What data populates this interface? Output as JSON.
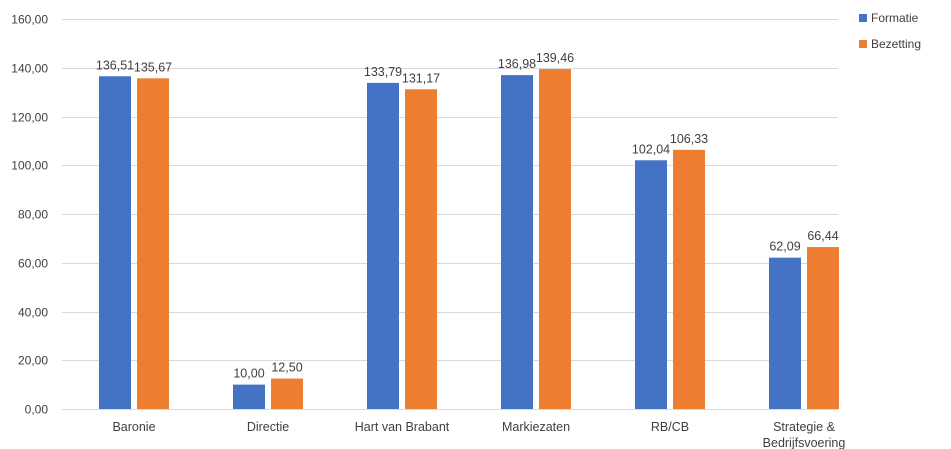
{
  "chart_data": {
    "type": "bar",
    "categories": [
      [
        "Baronie"
      ],
      [
        "Directie"
      ],
      [
        "Hart van Brabant"
      ],
      [
        "Markiezaten"
      ],
      [
        "RB/CB"
      ],
      [
        "Strategie &",
        "Bedrijfsvoering"
      ]
    ],
    "series": [
      {
        "name": "Formatie",
        "color": "#4472c4",
        "values": [
          136.51,
          10.0,
          133.79,
          136.98,
          102.04,
          62.09
        ],
        "labels": [
          "136,51",
          "10,00",
          "133,79",
          "136,98",
          "102,04",
          "62,09"
        ]
      },
      {
        "name": "Bezetting",
        "color": "#ed7d31",
        "values": [
          135.67,
          12.5,
          131.17,
          139.46,
          106.33,
          66.44
        ],
        "labels": [
          "135,67",
          "12,50",
          "131,17",
          "139,46",
          "106,33",
          "66,44"
        ]
      }
    ],
    "yticks": [
      {
        "value": 0,
        "label": "0,00"
      },
      {
        "value": 20,
        "label": "20,00"
      },
      {
        "value": 40,
        "label": "40,00"
      },
      {
        "value": 60,
        "label": "60,00"
      },
      {
        "value": 80,
        "label": "80,00"
      },
      {
        "value": 100,
        "label": "100,00"
      },
      {
        "value": 120,
        "label": "120,00"
      },
      {
        "value": 140,
        "label": "140,00"
      },
      {
        "value": 160,
        "label": "160,00"
      }
    ],
    "ylim": [
      0,
      160
    ],
    "grid": true,
    "legend_position": "top-right",
    "title": "",
    "xlabel": "",
    "ylabel": ""
  }
}
